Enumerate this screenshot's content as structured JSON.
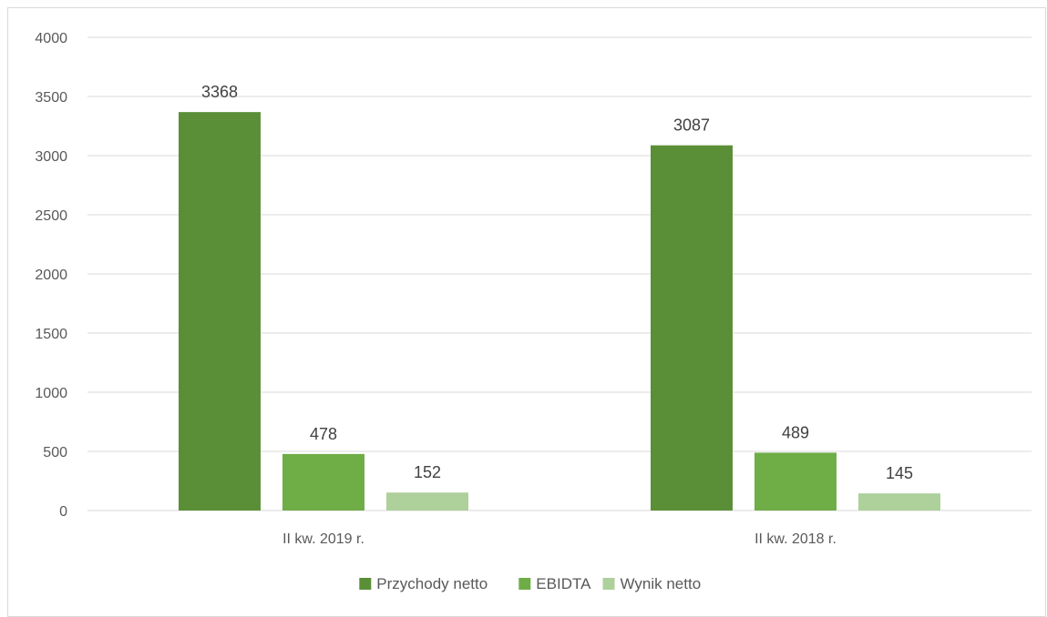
{
  "chart_data": {
    "type": "bar",
    "title": "",
    "xlabel": "",
    "ylabel": "",
    "categories": [
      "II kw. 2019 r.",
      "II kw. 2018 r."
    ],
    "series": [
      {
        "name": "Przychody netto",
        "values": [
          3368,
          3087
        ],
        "color": "#5a8f37"
      },
      {
        "name": "EBIDTA",
        "values": [
          478,
          489
        ],
        "color": "#6fad47"
      },
      {
        "name": "Wynik netto",
        "values": [
          152,
          145
        ],
        "color": "#aed09b"
      }
    ],
    "ylim": [
      0,
      4000
    ],
    "yticks": [
      0,
      500,
      1000,
      1500,
      2000,
      2500,
      3000,
      3500,
      4000
    ],
    "grid": true,
    "legend_position": "bottom",
    "gridline_color": "#d9d9d9"
  }
}
